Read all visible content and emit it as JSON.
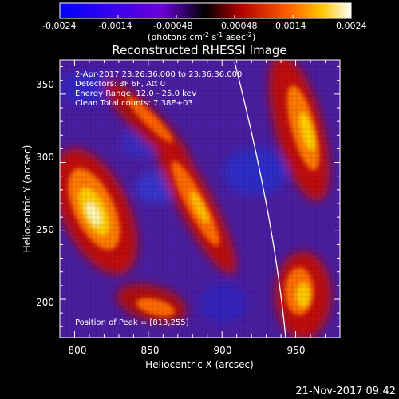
{
  "colorbar": {
    "ticks": [
      "-0.0024",
      "-0.0014",
      "-0.00048",
      "0.00048",
      "0.0014",
      "0.0024"
    ],
    "unit_label": "(photons cm",
    "unit_exp1": "-2",
    "unit_mid": " s",
    "unit_exp2": "-1",
    "unit_end": " asec",
    "unit_exp3": "-2",
    "unit_close": ")"
  },
  "plot": {
    "title": "Reconstructed RHESSI Image",
    "xlabel": "Heliocentric X (arcsec)",
    "ylabel": "Heliocentric Y (arcsec)",
    "xticks": [
      "800",
      "850",
      "900",
      "950"
    ],
    "yticks": [
      "350",
      "300",
      "250",
      "200"
    ],
    "x_range": [
      790,
      980
    ],
    "y_range": [
      172,
      375
    ]
  },
  "annotations": {
    "time_range": "2-Apr-2017 23:26:36.000 to 23:36:36.000",
    "detectors": "Detectors: 3F 6F, Att 0",
    "energy": "Energy Range: 12.0 - 25.0 keV",
    "clean": "Clean     Total counts: 7.38E+03",
    "peak": "Position of Peak = [813,255]"
  },
  "footer": {
    "timestamp": "21-Nov-2017 09:42"
  },
  "colors": {
    "background": "#000000",
    "frame": "#ffffff",
    "limb": "#ffffff"
  }
}
